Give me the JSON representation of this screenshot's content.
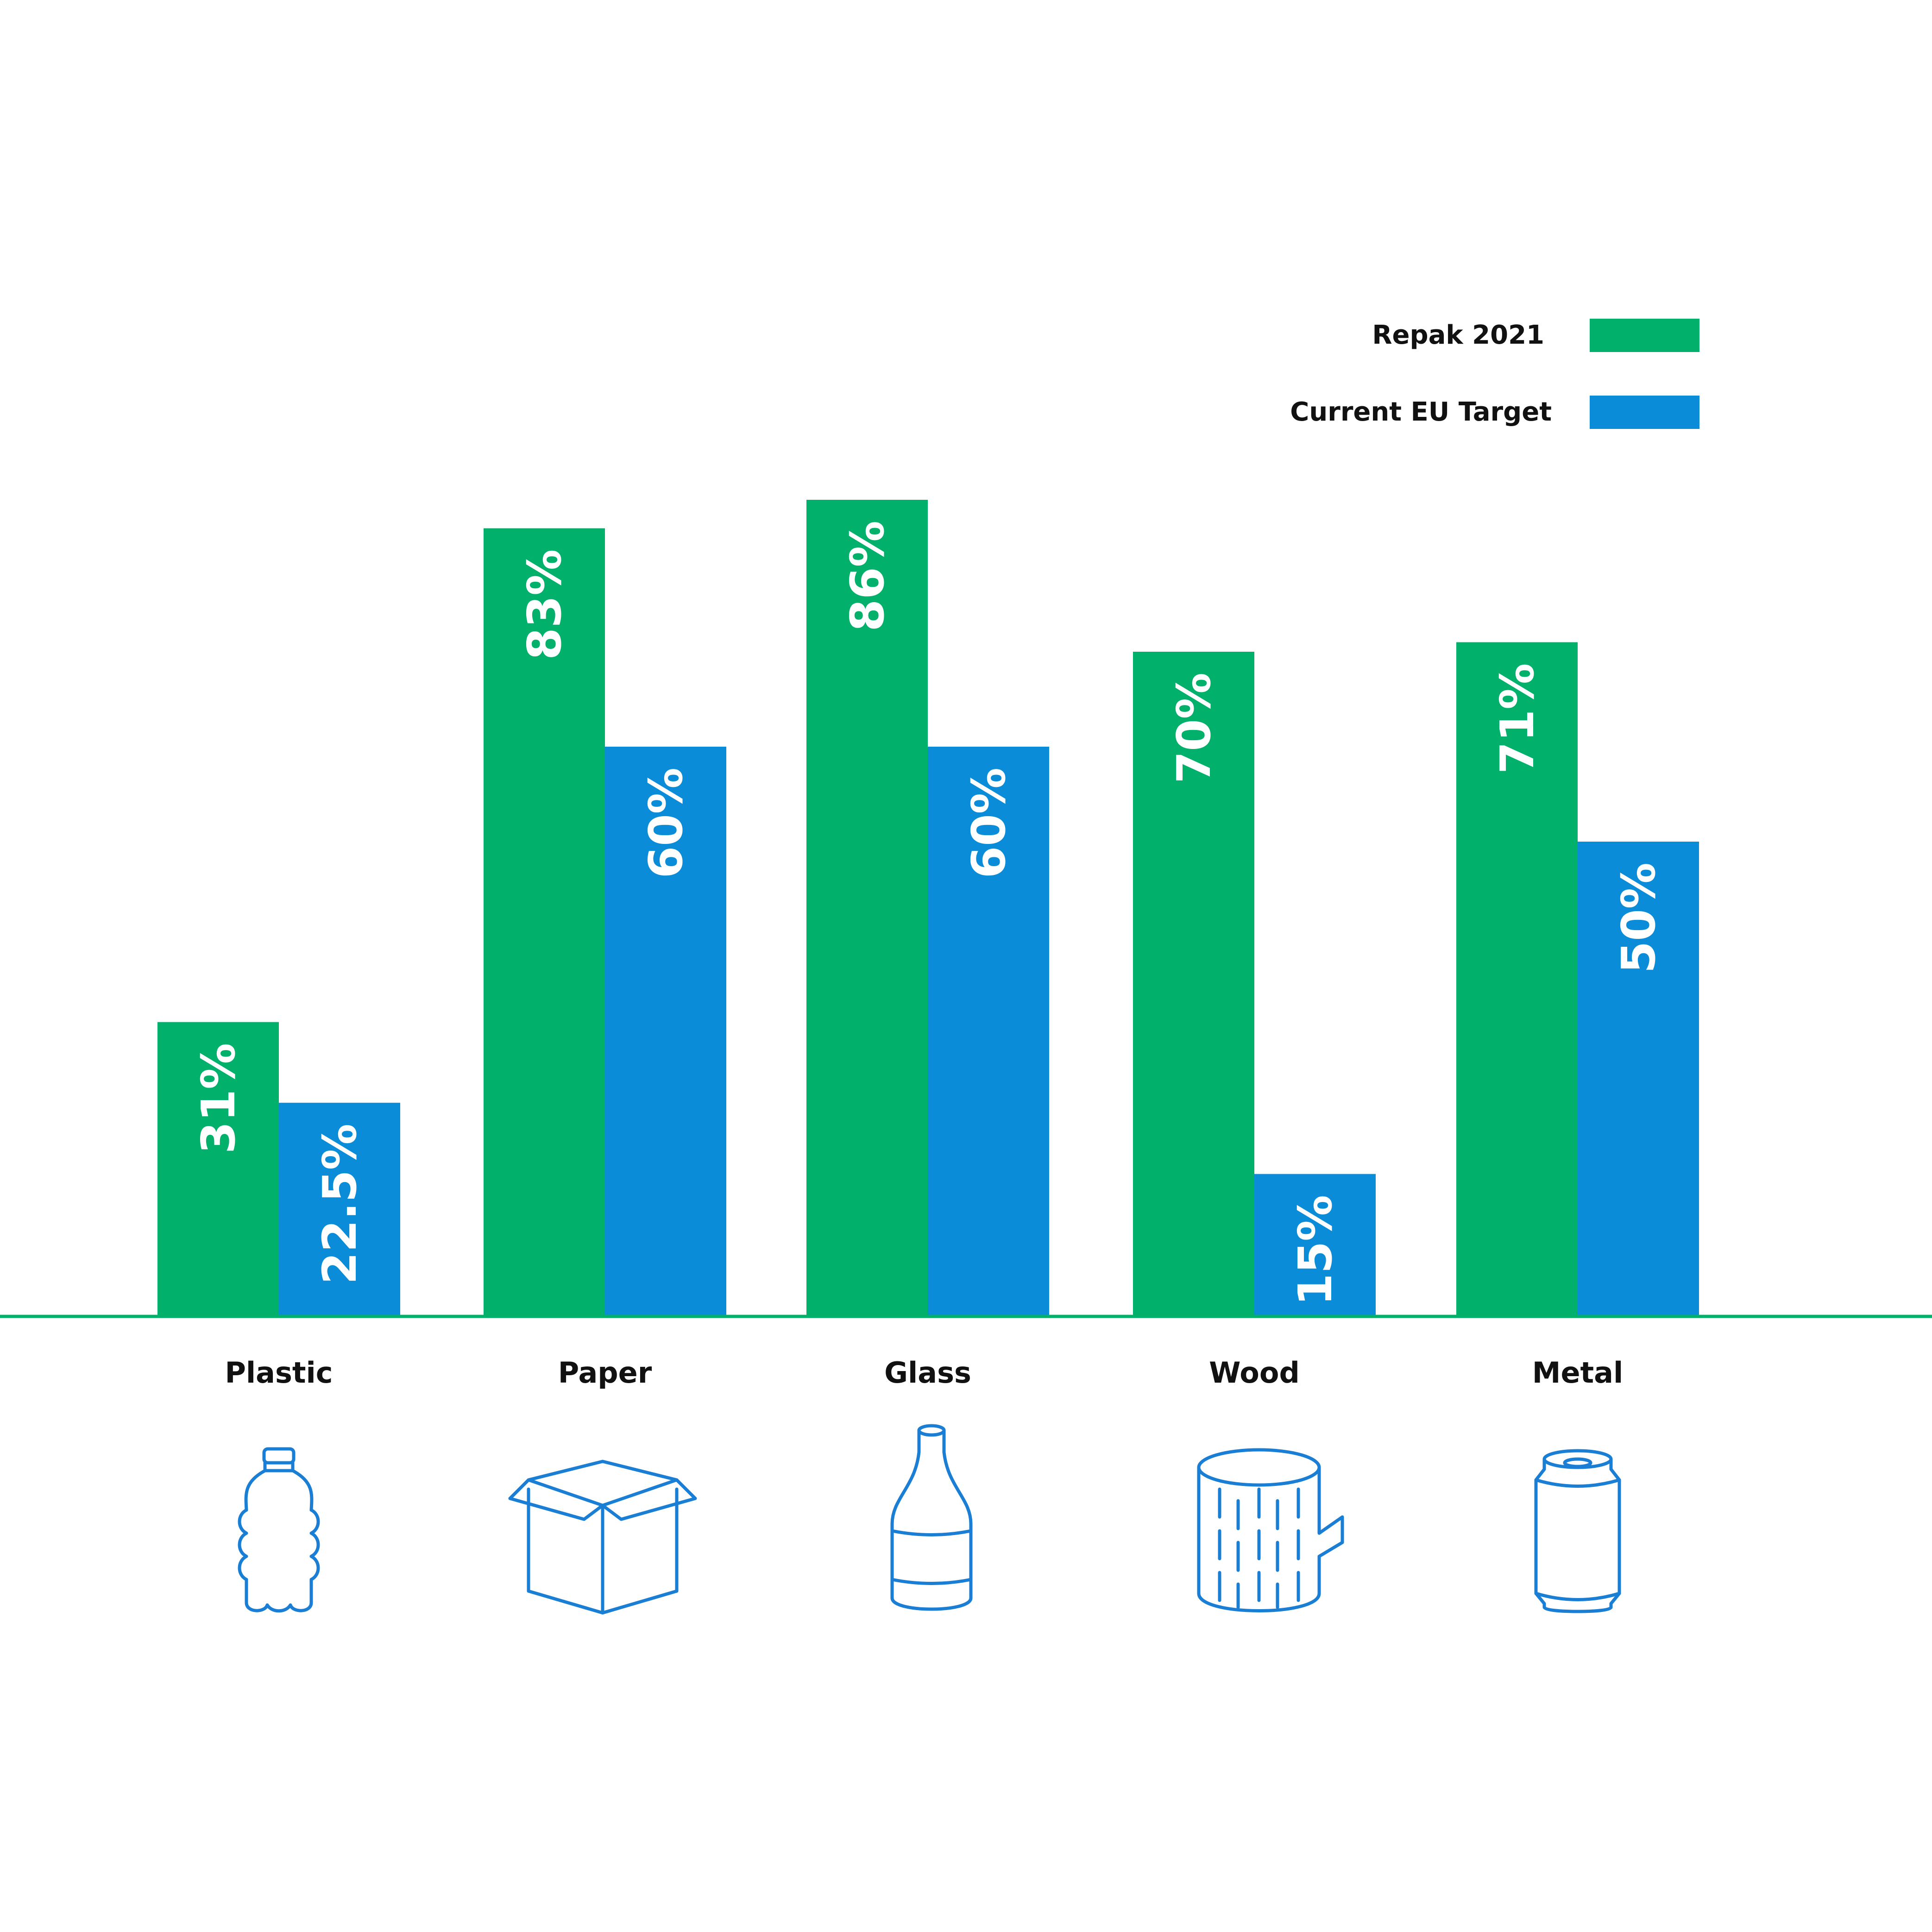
{
  "colors": {
    "green": "#00B06B",
    "blue": "#0A8CD8",
    "axis": "#00B06B",
    "icon": "#1A7FD4"
  },
  "chart_data": {
    "type": "bar",
    "title": "",
    "xlabel": "",
    "ylabel": "",
    "ylim": [
      0,
      100
    ],
    "grid": false,
    "legend_position": "top-right",
    "categories": [
      "Plastic",
      "Paper",
      "Glass",
      "Wood",
      "Metal"
    ],
    "series": [
      {
        "name": "Repak 2021",
        "color": "#00B06B",
        "values": [
          31,
          83,
          86,
          70,
          71
        ],
        "labels": [
          "31%",
          "83%",
          "86%",
          "70%",
          "71%"
        ]
      },
      {
        "name": "Current EU Target",
        "color": "#0A8CD8",
        "values": [
          22.5,
          60,
          60,
          15,
          50
        ],
        "labels": [
          "22.5%",
          "60%",
          "60%",
          "15%",
          "50%"
        ]
      }
    ],
    "category_icons": [
      "plastic-bottle-icon",
      "cardboard-box-icon",
      "glass-bottle-icon",
      "wood-log-icon",
      "metal-can-icon"
    ]
  }
}
